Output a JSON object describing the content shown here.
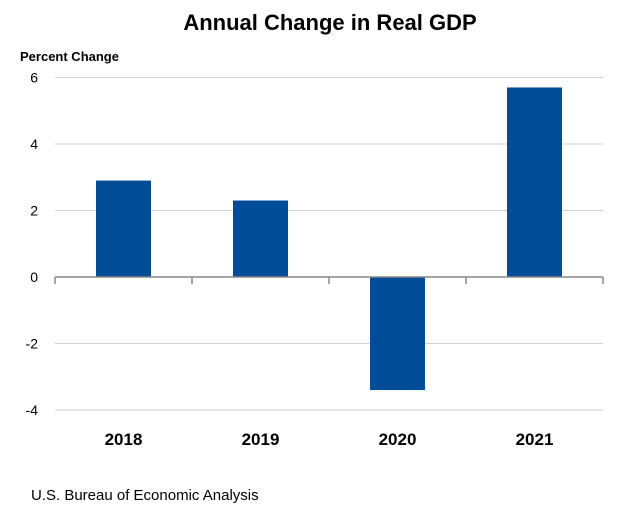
{
  "chart_data": {
    "type": "bar",
    "title": "Annual Change in Real GDP",
    "ylabel": "Percent Change",
    "xlabel": "",
    "categories": [
      "2018",
      "2019",
      "2020",
      "2021"
    ],
    "values": [
      2.9,
      2.3,
      -3.4,
      5.7
    ],
    "ylim": [
      -4,
      6
    ],
    "yticks": [
      6,
      4,
      2,
      0,
      -2,
      -4
    ],
    "ytick_labels": [
      "6",
      "4",
      "2",
      "0",
      "-2",
      "-4"
    ],
    "grid": true,
    "legend": "none",
    "bar_color": "#004C97",
    "source": "U.S. Bureau of Economic Analysis"
  }
}
